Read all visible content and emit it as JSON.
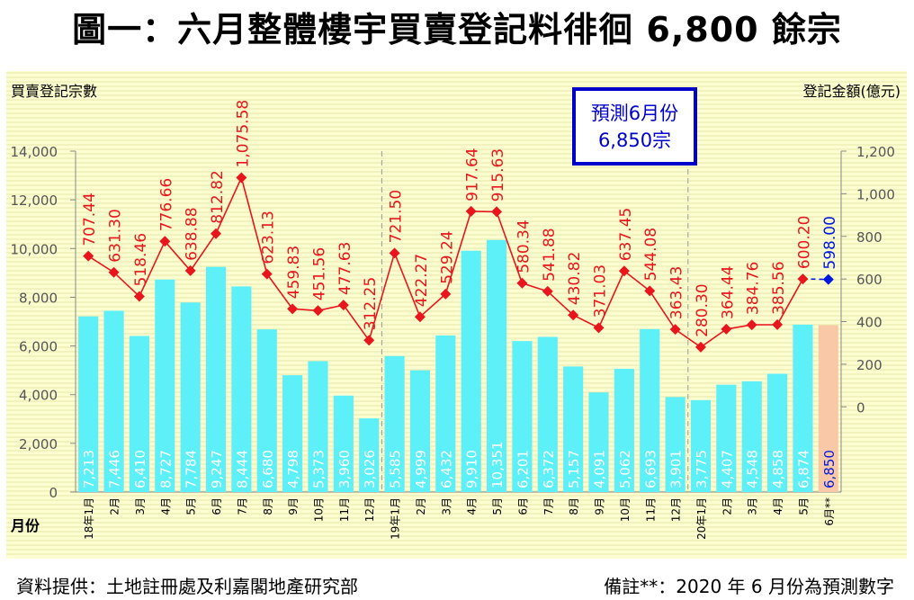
{
  "title": "圖一：六月整體樓宇買賣登記料徘徊 6,800 餘宗",
  "footer": {
    "source": "資料提供：土地註冊處及利嘉閣地產研究部",
    "note": "備註**：2020 年 6 月份為預測數字"
  },
  "forecast_box": {
    "line1": "預測6月份",
    "line2": "6,850宗"
  },
  "colors": {
    "bar": "#5ef0f8",
    "forecast_bar": "#f9c9a7",
    "line": "#e8161c",
    "forecast_point": "#0018e0",
    "plot_bg": "#fdfdd2",
    "grid": "#e8e8a8"
  },
  "chart_data": {
    "type": "bar+line",
    "ylabel_left": "買賣登記宗數",
    "ylabel_right": "登記金額(億元)",
    "xlabel": "月份",
    "left_ticks": [
      "0",
      "2,000",
      "4,000",
      "6,000",
      "8,000",
      "10,000",
      "12,000",
      "14,000"
    ],
    "right_ticks": [
      "0",
      "200",
      "400",
      "600",
      "800",
      "1,000",
      "1,200"
    ],
    "ylim_left": [
      0,
      14000
    ],
    "ylim_right": [
      -400,
      1200
    ],
    "categories": [
      "18年1月",
      "2月",
      "3月",
      "4月",
      "5月",
      "6月",
      "7月",
      "8月",
      "9月",
      "10月",
      "11月",
      "12月",
      "19年1月",
      "2月",
      "3月",
      "4月",
      "5月",
      "6月",
      "7月",
      "8月",
      "9月",
      "10月",
      "11月",
      "12月",
      "20年1月",
      "2月",
      "3月",
      "4月",
      "5月",
      "6月**"
    ],
    "series": [
      {
        "name": "買賣登記宗數",
        "type": "bar",
        "values": [
          7213,
          7446,
          6410,
          8727,
          7784,
          9247,
          8444,
          6680,
          4798,
          5373,
          3960,
          3026,
          5585,
          4999,
          6432,
          9910,
          10351,
          6201,
          6372,
          5157,
          4091,
          5062,
          6693,
          3901,
          3775,
          4407,
          4548,
          4858,
          6874,
          6850
        ],
        "labels": [
          "7,213",
          "7,446",
          "6,410",
          "8,727",
          "7,784",
          "9,247",
          "8,444",
          "6,680",
          "4,798",
          "5,373",
          "3,960",
          "3,026",
          "5,585",
          "4,999",
          "6,432",
          "9,910",
          "10,351",
          "6,201",
          "6,372",
          "5,157",
          "4,091",
          "5,062",
          "6,693",
          "3,901",
          "3,775",
          "4,407",
          "4,548",
          "4,858",
          "6,874",
          "6,850"
        ]
      },
      {
        "name": "登記金額(億元)",
        "type": "line",
        "values": [
          707.44,
          631.3,
          518.46,
          776.66,
          638.88,
          812.82,
          1075.58,
          623.13,
          459.83,
          451.56,
          477.63,
          312.25,
          721.5,
          422.27,
          529.24,
          917.64,
          915.63,
          580.34,
          541.88,
          430.82,
          371.03,
          637.45,
          544.08,
          363.43,
          280.3,
          364.44,
          384.76,
          385.56,
          600.2,
          598.0
        ],
        "labels": [
          "707.44",
          "631.30",
          "518.46",
          "776.66",
          "638.88",
          "812.82",
          "1,075.58",
          "623.13",
          "459.83",
          "451.56",
          "477.63",
          "312.25",
          "721.50",
          "422.27",
          "529.24",
          "917.64",
          "915.63",
          "580.34",
          "541.88",
          "430.82",
          "371.03",
          "637.45",
          "544.08",
          "363.43",
          "280.30",
          "364.44",
          "384.76",
          "385.56",
          "600.20",
          "598.00"
        ]
      }
    ],
    "forecast_index": 29,
    "year_dividers_after": [
      11,
      23
    ]
  }
}
